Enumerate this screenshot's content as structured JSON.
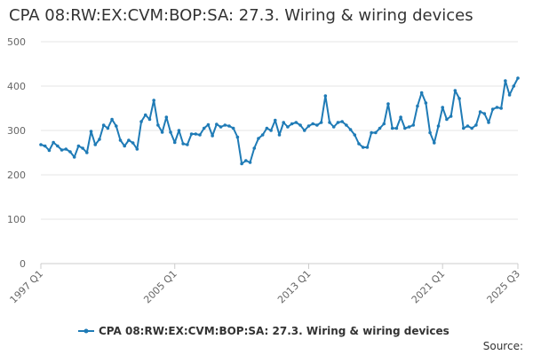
{
  "chart_data": {
    "type": "line",
    "title": "CPA 08:RW:EX:CVM:BOP:SA: 27.3. Wiring & wiring devices",
    "ylim": [
      0,
      500
    ],
    "y_ticks": [
      "0",
      "100",
      "200",
      "300",
      "400",
      "500"
    ],
    "x_tick_labels": [
      "1997 Q1",
      "2005 Q1",
      "2013 Q1",
      "2021 Q1",
      "2025 Q3"
    ],
    "grid": true,
    "legend_position": "bottom",
    "source_label": "Source:",
    "color": "#1f7bb6",
    "series": [
      {
        "name": "CPA 08:RW:EX:CVM:BOP:SA: 27.3. Wiring & wiring devices",
        "x": [
          "1997 Q1",
          "1997 Q2",
          "1997 Q3",
          "1997 Q4",
          "1998 Q1",
          "1998 Q2",
          "1998 Q3",
          "1998 Q4",
          "1999 Q1",
          "1999 Q2",
          "1999 Q3",
          "1999 Q4",
          "2000 Q1",
          "2000 Q2",
          "2000 Q3",
          "2000 Q4",
          "2001 Q1",
          "2001 Q2",
          "2001 Q3",
          "2001 Q4",
          "2002 Q1",
          "2002 Q2",
          "2002 Q3",
          "2002 Q4",
          "2003 Q1",
          "2003 Q2",
          "2003 Q3",
          "2003 Q4",
          "2004 Q1",
          "2004 Q2",
          "2004 Q3",
          "2004 Q4",
          "2005 Q1",
          "2005 Q2",
          "2005 Q3",
          "2005 Q4",
          "2006 Q1",
          "2006 Q2",
          "2006 Q3",
          "2006 Q4",
          "2007 Q1",
          "2007 Q2",
          "2007 Q3",
          "2007 Q4",
          "2008 Q1",
          "2008 Q2",
          "2008 Q3",
          "2008 Q4",
          "2009 Q1",
          "2009 Q2",
          "2009 Q3",
          "2009 Q4",
          "2010 Q1",
          "2010 Q2",
          "2010 Q3",
          "2010 Q4",
          "2011 Q1",
          "2011 Q2",
          "2011 Q3",
          "2011 Q4",
          "2012 Q1",
          "2012 Q2",
          "2012 Q3",
          "2012 Q4",
          "2013 Q1",
          "2013 Q2",
          "2013 Q3",
          "2013 Q4",
          "2014 Q1",
          "2014 Q2",
          "2014 Q3",
          "2014 Q4",
          "2015 Q1",
          "2015 Q2",
          "2015 Q3",
          "2015 Q4",
          "2016 Q1",
          "2016 Q2",
          "2016 Q3",
          "2016 Q4",
          "2017 Q1",
          "2017 Q2",
          "2017 Q3",
          "2017 Q4",
          "2018 Q1",
          "2018 Q2",
          "2018 Q3",
          "2018 Q4",
          "2019 Q1",
          "2019 Q2",
          "2019 Q3",
          "2019 Q4",
          "2020 Q1",
          "2020 Q2",
          "2020 Q3",
          "2020 Q4",
          "2021 Q1",
          "2021 Q2",
          "2021 Q3",
          "2021 Q4",
          "2022 Q1",
          "2022 Q2",
          "2022 Q3",
          "2022 Q4",
          "2023 Q1",
          "2023 Q2",
          "2023 Q3",
          "2023 Q4",
          "2024 Q1",
          "2024 Q2",
          "2024 Q3",
          "2024 Q4",
          "2025 Q1",
          "2025 Q2",
          "2025 Q3"
        ],
        "values": [
          268,
          265,
          255,
          273,
          265,
          256,
          258,
          252,
          240,
          265,
          260,
          250,
          298,
          268,
          280,
          312,
          305,
          325,
          310,
          278,
          265,
          278,
          272,
          258,
          320,
          335,
          325,
          368,
          312,
          296,
          330,
          296,
          273,
          300,
          270,
          268,
          292,
          292,
          290,
          305,
          313,
          288,
          314,
          308,
          312,
          310,
          305,
          285,
          225,
          232,
          228,
          260,
          282,
          290,
          305,
          300,
          323,
          290,
          318,
          308,
          315,
          318,
          312,
          300,
          310,
          315,
          312,
          318,
          378,
          318,
          308,
          318,
          320,
          312,
          302,
          290,
          270,
          262,
          262,
          295,
          295,
          305,
          315,
          360,
          305,
          305,
          330,
          305,
          308,
          312,
          355,
          385,
          362,
          295,
          272,
          310,
          352,
          325,
          332,
          390,
          372,
          305,
          310,
          305,
          312,
          342,
          338,
          318,
          348,
          352,
          350,
          412,
          380,
          400,
          418
        ]
      }
    ]
  }
}
